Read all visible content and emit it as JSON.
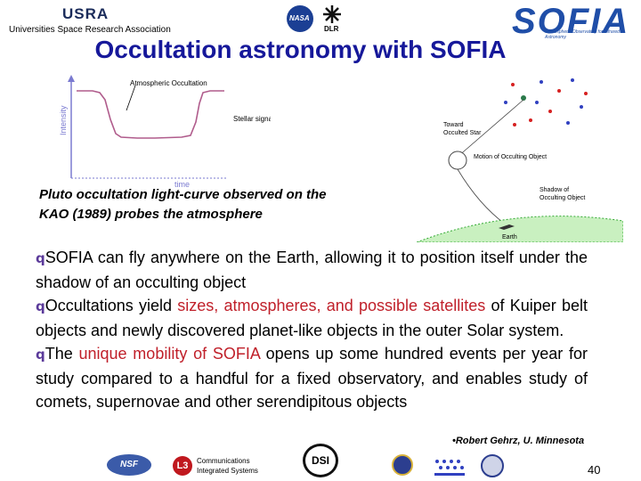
{
  "header": {
    "usra_logo": "USRA",
    "usra_sub": "Universities Space Research Association",
    "nasa_logo": "NASA",
    "dlr_logo": "DLR",
    "sofia_logo": "SOFIA",
    "sofia_tagline": "Stratospheric Observatory for Infrared Astronomy"
  },
  "title": "Occultation astronomy with SOFIA",
  "lightcurve": {
    "ylabel": "Intensity",
    "xlabel": "time",
    "atmos_label": "Atmospheric Occultation",
    "stellar_label": "Stellar signal"
  },
  "caption": {
    "line1": "Pluto occultation light-curve observed on the",
    "line2": "KAO (1989) probes the atmosphere"
  },
  "shadow_diagram": {
    "toward_star": "Toward",
    "toward_star2": "Occulted Star",
    "motion": "Motion of Occulting Object",
    "shadow": "Shadow of",
    "shadow2": "Occulting Object",
    "earth": "Earth"
  },
  "body": {
    "bullet": "q",
    "p1_a": "SOFIA can fly anywhere on the Earth, allowing it to position itself under the shadow of an occulting object",
    "p2_a": "Occultations yield ",
    "p2_red": "sizes, atmospheres, and possible satellites",
    "p2_b": " of Kuiper belt objects and newly discovered planet-like objects in the outer Solar system.",
    "p3_a": "The ",
    "p3_red": "unique mobility of SOFIA",
    "p3_b": " opens up some hundred events per year for study compared to a handful for a fixed observatory, and enables study of comets, supernovae and other serendipitous objects"
  },
  "credit": "•Robert Gehrz, U. Minnesota",
  "footer": {
    "nsf": "NSF",
    "l3": "L3",
    "l3_line1": "Communications",
    "l3_line2": "Integrated Systems",
    "dsi": "DSI",
    "page": "40"
  }
}
